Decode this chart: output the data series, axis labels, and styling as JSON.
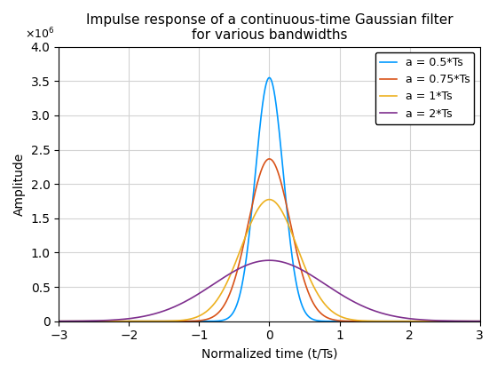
{
  "title": "Impulse response of a continuous-time Gaussian filter\nfor various bandwidths",
  "xlabel": "Normalized time (t/Ts)",
  "ylabel": "Amplitude",
  "xlim": [
    -3,
    3
  ],
  "ylim": [
    0,
    4000000.0
  ],
  "xticks": [
    -3,
    -2,
    -1,
    0,
    1,
    2,
    3
  ],
  "series": [
    {
      "label": "a = 0.5*Ts",
      "a": 0.5,
      "color": "#0099FF"
    },
    {
      "label": "a = 0.75*Ts",
      "a": 0.75,
      "color": "#D95319"
    },
    {
      "label": "a = 1*Ts",
      "a": 1.0,
      "color": "#EDB120"
    },
    {
      "label": "a = 2*Ts",
      "a": 2.0,
      "color": "#7E2F8E"
    }
  ],
  "scale": 1000000.0,
  "legend_loc": "upper right",
  "grid": true,
  "title_fontsize": 11,
  "label_fontsize": 10,
  "tick_fontsize": 10,
  "legend_fontsize": 9,
  "background_color": "#FFFFFF"
}
